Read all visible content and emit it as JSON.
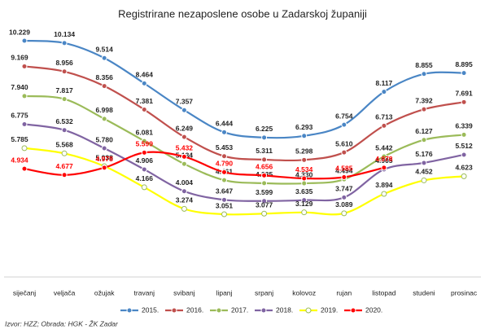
{
  "chart_data": {
    "type": "line",
    "title": "Registrirane nezaposlene osobe u Zadarskoj županiji",
    "source": "Izvor: HZZ; Obrada: HGK - ŽK Zadar",
    "categories": [
      "siječanj",
      "veljača",
      "ožujak",
      "travanj",
      "svibanj",
      "lipanj",
      "srpanj",
      "kolovoz",
      "rujan",
      "listopad",
      "studeni",
      "prosinac"
    ],
    "series": [
      {
        "name": "2015.",
        "color": "#4a86c5",
        "values": [
          10229,
          10134,
          9514,
          8464,
          7357,
          6444,
          6225,
          6293,
          6754,
          8117,
          8855,
          8895
        ],
        "value_labels": [
          "10.229",
          "10.134",
          "9.514",
          "8.464",
          "7.357",
          "6.444",
          "6.225",
          "6.293",
          "6.754",
          "8.117",
          "8.855",
          "8.895"
        ]
      },
      {
        "name": "2016.",
        "color": "#c0504d",
        "values": [
          9169,
          8956,
          8356,
          7381,
          6249,
          5453,
          5311,
          5298,
          5610,
          6713,
          7392,
          7691
        ],
        "value_labels": [
          "9.169",
          "8.956",
          "8.356",
          "7.381",
          "6.249",
          "5.453",
          "5.311",
          "5.298",
          "5.610",
          "6.713",
          "7.392",
          "7.691"
        ]
      },
      {
        "name": "2017.",
        "color": "#9bbb59",
        "values": [
          7940,
          7817,
          6998,
          6081,
          5134,
          4461,
          4335,
          4330,
          4494,
          5442,
          6127,
          6339
        ],
        "value_labels": [
          "7.940",
          "7.817",
          "6.998",
          "6.081",
          "5.134",
          "4.461",
          "4.335",
          "4.330",
          "4.494",
          "5.442",
          "6.127",
          "6.339"
        ]
      },
      {
        "name": "2018.",
        "color": "#8064a2",
        "values": [
          6775,
          6532,
          5780,
          4906,
          4004,
          3647,
          3599,
          3635,
          3747,
          4905,
          5176,
          5512
        ],
        "value_labels": [
          "6.775",
          "6.532",
          "5.780",
          "4.906",
          "4.004",
          "3.647",
          "3.599",
          "3.635",
          "3.747",
          "4.905",
          "5.176",
          "5.512"
        ]
      },
      {
        "name": "2019.",
        "color": "#ffff00",
        "values": [
          5785,
          5568,
          5038,
          4166,
          3274,
          3051,
          3077,
          3129,
          3089,
          3894,
          4452,
          4623
        ],
        "value_labels": [
          "5.785",
          "5.568",
          "5.038",
          "4.166",
          "3.274",
          "3.051",
          "3.077",
          "3.129",
          "3.089",
          "3.894",
          "4.452",
          "4.623"
        ]
      },
      {
        "name": "2020.",
        "color": "#ff0000",
        "values": [
          4934,
          4677,
          4978,
          5599,
          5432,
          4790,
          4656,
          4534,
          4585,
          4978,
          null,
          null
        ],
        "value_labels": [
          "4.934",
          "4.677",
          "4.978",
          "5.599",
          "5.432",
          "4.790",
          "4.656",
          "4.534",
          "4.585",
          "4.978",
          null,
          null
        ]
      }
    ]
  }
}
